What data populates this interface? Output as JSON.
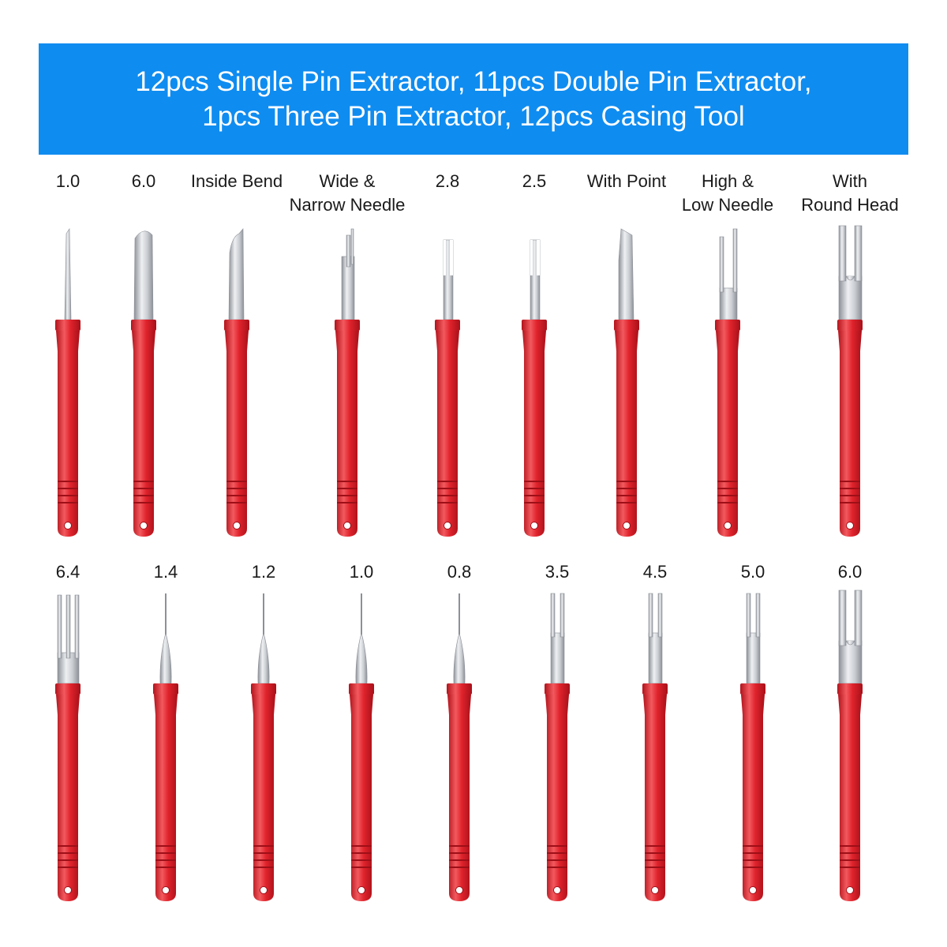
{
  "banner": {
    "line1": "12pcs Single Pin Extractor, 11pcs Double Pin Extractor,",
    "line2": "1pcs Three Pin Extractor, 12pcs Casing Tool"
  },
  "rows": [
    {
      "labels": [
        [
          "1.0"
        ],
        [
          "6.0"
        ],
        [
          "Inside Bend"
        ],
        [
          "Wide &",
          "Narrow Needle"
        ],
        [
          "2.8"
        ],
        [
          "2.5"
        ],
        [
          "With Point"
        ],
        [
          "High &",
          "Low Needle"
        ],
        [
          "With",
          "Round Head"
        ]
      ],
      "tips": [
        "thin-pin",
        "round-blade",
        "bend-blade",
        "double-narrow",
        "double-slot",
        "double-slot",
        "angled-blade",
        "double-prong",
        "wide-fork"
      ]
    },
    {
      "labels": [
        [
          "6.4"
        ],
        [
          "1.4"
        ],
        [
          "1.2"
        ],
        [
          "1.0"
        ],
        [
          "0.8"
        ],
        [
          "3.5"
        ],
        [
          "4.5"
        ],
        [
          "5.0"
        ],
        [
          "6.0"
        ]
      ],
      "tips": [
        "triple-fork",
        "needle",
        "needle",
        "needle",
        "needle",
        "fork",
        "fork",
        "fork",
        "wide-fork"
      ]
    }
  ],
  "colors": {
    "banner": "#0f8cf0",
    "handle": "#e0232c",
    "handle_dark": "#b3131c",
    "handle_light": "#f25a5f",
    "steel": "#c9ccd1",
    "steel_dark": "#8c9097",
    "steel_light": "#eef0f2"
  }
}
